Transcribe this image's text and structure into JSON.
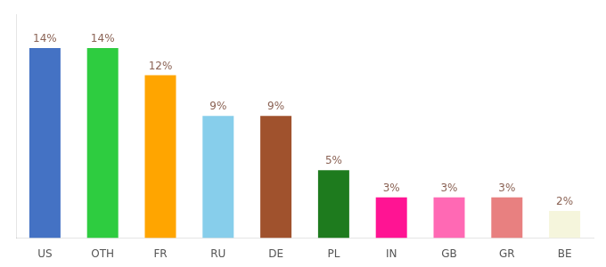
{
  "chart_data": {
    "type": "bar",
    "categories": [
      "US",
      "OTH",
      "FR",
      "RU",
      "DE",
      "PL",
      "IN",
      "GB",
      "GR",
      "BE"
    ],
    "values": [
      14,
      14,
      12,
      9,
      9,
      5,
      3,
      3,
      3,
      2
    ],
    "value_labels": [
      "14%",
      "14%",
      "12%",
      "9%",
      "9%",
      "5%",
      "3%",
      "3%",
      "3%",
      "2%"
    ],
    "data_labels": true,
    "colors": [
      "#4472C4",
      "#2ECC40",
      "#FFA500",
      "#87CEEB",
      "#A0522D",
      "#1E7B1E",
      "#FF1493",
      "#FF69B4",
      "#E88080",
      "#F5F5DC"
    ],
    "ylim": [
      0,
      16.5
    ],
    "tick_labels": "x",
    "grid": false
  }
}
